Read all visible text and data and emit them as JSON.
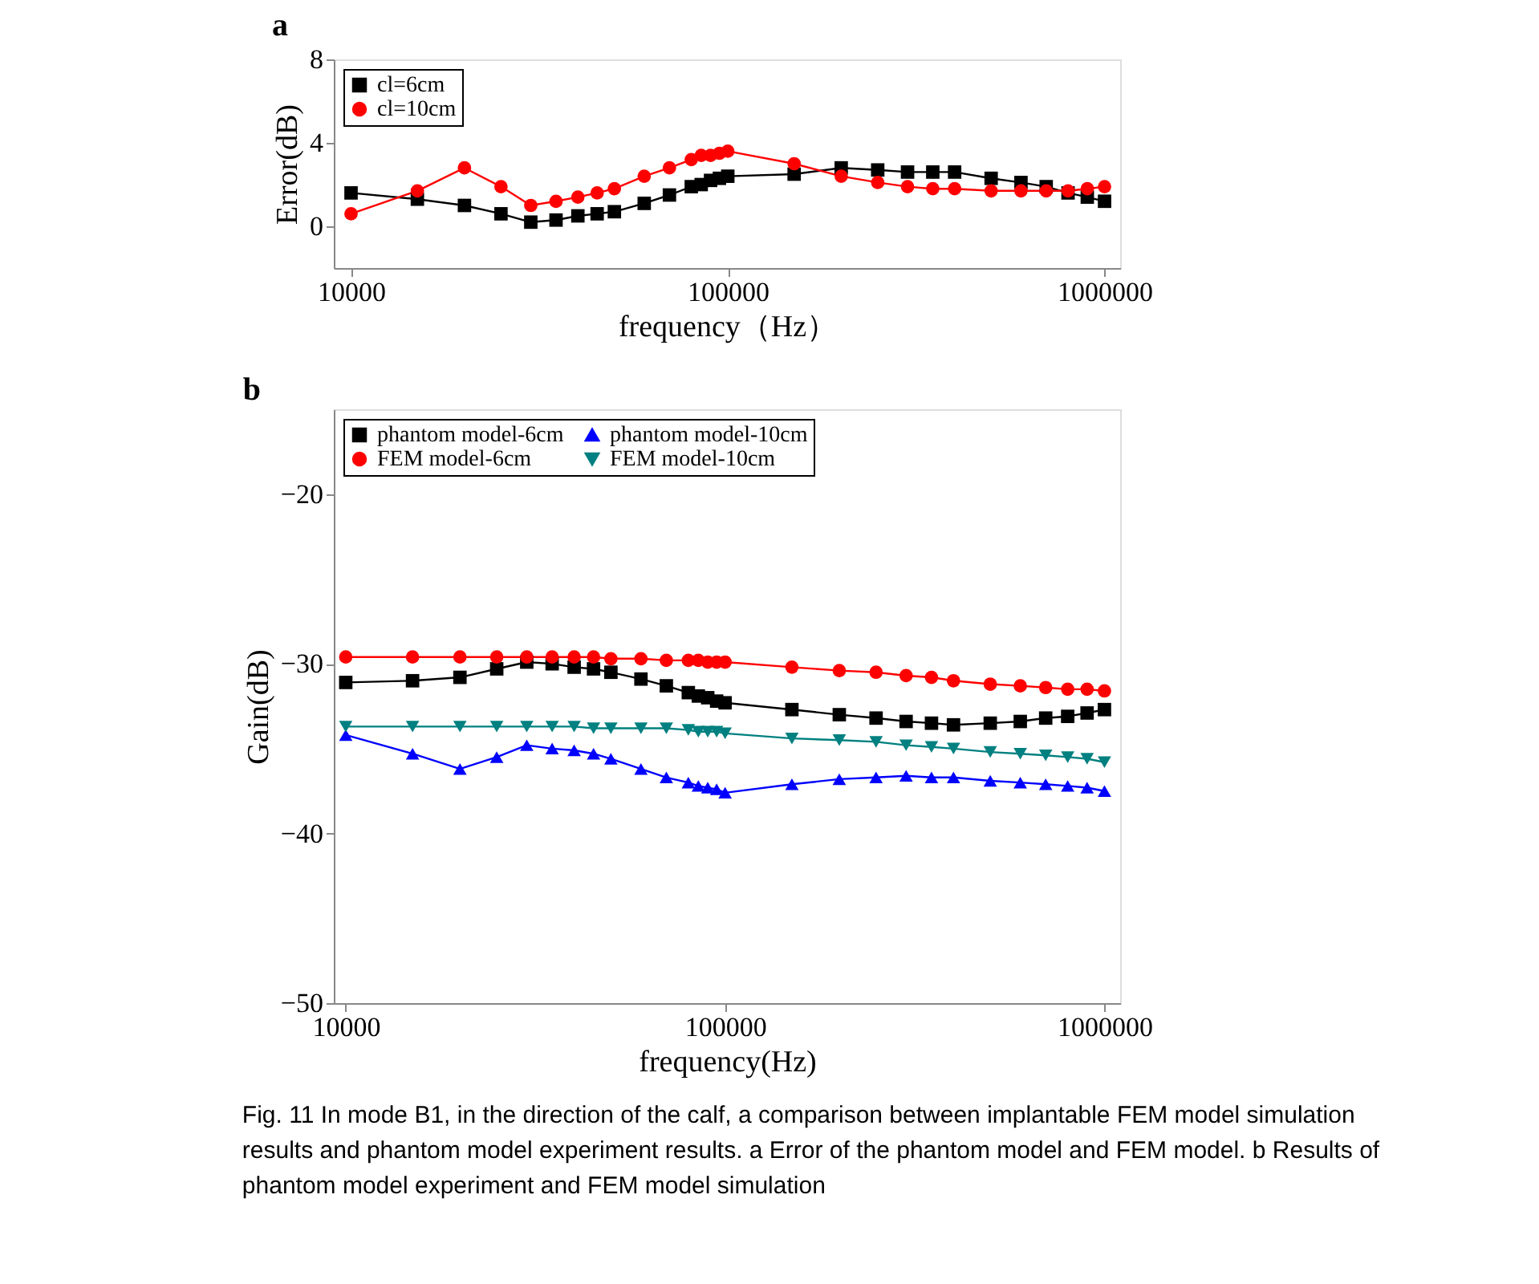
{
  "chart_data": [
    {
      "type": "line",
      "title": "a",
      "xlabel": "frequency（Hz）",
      "ylabel": "Error(dB)",
      "log": "x",
      "xlim": [
        9000,
        1100000
      ],
      "xticks": [
        10000,
        100000,
        1000000
      ],
      "ylim": [
        -2,
        8
      ],
      "yticks": [
        0,
        4,
        8
      ],
      "grid": false,
      "legend": "top left",
      "x": [
        10000,
        15000,
        20000,
        25000,
        30000,
        35000,
        40000,
        45000,
        50000,
        60000,
        70000,
        80000,
        85000,
        90000,
        95000,
        100000,
        150000,
        200000,
        250000,
        300000,
        350000,
        400000,
        500000,
        600000,
        700000,
        800000,
        900000,
        1000000
      ],
      "series": [
        {
          "name": "cl=6cm",
          "color": "#000000",
          "marker": "square",
          "values": [
            1.6,
            1.3,
            1.0,
            0.6,
            0.2,
            0.3,
            0.5,
            0.6,
            0.7,
            1.1,
            1.5,
            1.9,
            2.0,
            2.2,
            2.3,
            2.4,
            2.5,
            2.8,
            2.7,
            2.6,
            2.6,
            2.6,
            2.3,
            2.1,
            1.9,
            1.6,
            1.4,
            1.2
          ]
        },
        {
          "name": "cl=10cm",
          "color": "#ff0000",
          "marker": "circle",
          "values": [
            0.6,
            1.7,
            2.8,
            1.9,
            1.0,
            1.2,
            1.4,
            1.6,
            1.8,
            2.4,
            2.8,
            3.2,
            3.4,
            3.4,
            3.5,
            3.6,
            3.0,
            2.4,
            2.1,
            1.9,
            1.8,
            1.8,
            1.7,
            1.7,
            1.7,
            1.7,
            1.8,
            1.9
          ]
        }
      ]
    },
    {
      "type": "line",
      "title": "b",
      "xlabel": "frequency(Hz)",
      "ylabel": "Gain(dB)",
      "log": "x",
      "xlim": [
        9300,
        1100000
      ],
      "xticks": [
        10000,
        100000,
        1000000
      ],
      "ylim": [
        -50,
        -15
      ],
      "yticks": [
        -50,
        -40,
        -30,
        -20
      ],
      "grid": false,
      "legend": "top left",
      "x": [
        10000,
        15000,
        20000,
        25000,
        30000,
        35000,
        40000,
        45000,
        50000,
        60000,
        70000,
        80000,
        85000,
        90000,
        95000,
        100000,
        150000,
        200000,
        250000,
        300000,
        350000,
        400000,
        500000,
        600000,
        700000,
        800000,
        900000,
        1000000
      ],
      "series": [
        {
          "name": "phantom model-6cm",
          "color": "#000000",
          "marker": "square",
          "values": [
            -31.1,
            -31.0,
            -30.8,
            -30.3,
            -29.9,
            -30.0,
            -30.2,
            -30.3,
            -30.5,
            -30.9,
            -31.3,
            -31.7,
            -31.9,
            -32.0,
            -32.2,
            -32.3,
            -32.7,
            -33.0,
            -33.2,
            -33.4,
            -33.5,
            -33.6,
            -33.5,
            -33.4,
            -33.2,
            -33.1,
            -32.9,
            -32.7
          ]
        },
        {
          "name": "FEM model-6cm",
          "color": "#ff0000",
          "marker": "circle",
          "values": [
            -29.6,
            -29.6,
            -29.6,
            -29.6,
            -29.6,
            -29.6,
            -29.6,
            -29.6,
            -29.7,
            -29.7,
            -29.8,
            -29.8,
            -29.8,
            -29.9,
            -29.9,
            -29.9,
            -30.2,
            -30.4,
            -30.5,
            -30.7,
            -30.8,
            -31.0,
            -31.2,
            -31.3,
            -31.4,
            -31.5,
            -31.5,
            -31.6
          ]
        },
        {
          "name": "phantom model-10cm",
          "color": "#0000ff",
          "marker": "triangle",
          "values": [
            -34.2,
            -35.3,
            -36.2,
            -35.5,
            -34.8,
            -35.0,
            -35.1,
            -35.3,
            -35.6,
            -36.2,
            -36.7,
            -37.0,
            -37.2,
            -37.3,
            -37.4,
            -37.6,
            -37.1,
            -36.8,
            -36.7,
            -36.6,
            -36.7,
            -36.7,
            -36.9,
            -37.0,
            -37.1,
            -37.2,
            -37.3,
            -37.5
          ]
        },
        {
          "name": "FEM model-10cm",
          "color": "#008080",
          "marker": "triangle-down",
          "values": [
            -33.7,
            -33.7,
            -33.7,
            -33.7,
            -33.7,
            -33.7,
            -33.7,
            -33.8,
            -33.8,
            -33.8,
            -33.8,
            -33.9,
            -34.0,
            -34.0,
            -34.0,
            -34.1,
            -34.4,
            -34.5,
            -34.6,
            -34.8,
            -34.9,
            -35.0,
            -35.2,
            -35.3,
            -35.4,
            -35.5,
            -35.6,
            -35.8
          ]
        }
      ],
      "annotations": [
        "Fig. 11  In mode B1, in the direction of the calf, a comparison between implantable FEM model simulation results and phantom model experiment results. a Error of the phantom model and FEM model. b Results of phantom model experiment and FEM model simulation"
      ]
    }
  ]
}
